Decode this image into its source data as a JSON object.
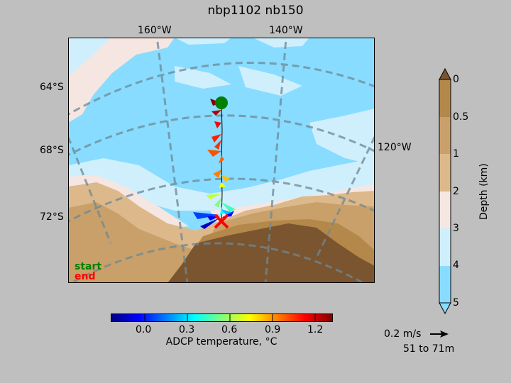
{
  "title": "nbp1102 nb150",
  "map": {
    "lon_labels": [
      "160°W",
      "140°W",
      "120°W"
    ],
    "lat_labels": [
      "64°S",
      "68°S",
      "72°S"
    ],
    "legend": {
      "start": "start",
      "end": "end"
    },
    "colors": {
      "ocean_deep": "#88dcff",
      "ocean_mid": "#cfeffd",
      "ocean_shallow": "#f5e6e1",
      "shelf": "#ddb88a",
      "land_low": "#c9a06a",
      "land": "#b3884a",
      "land_high": "#7a5530",
      "graticule": "#6e8893",
      "start_marker": "#008000",
      "end_marker": "#ff0000"
    }
  },
  "temperature_colorbar": {
    "label": "ADCP temperature, °C",
    "ticks": [
      "0.0",
      "0.3",
      "0.6",
      "0.9",
      "1.2"
    ],
    "range": [
      -0.25,
      1.3
    ],
    "colors": [
      "#00007f",
      "#0000ff",
      "#007fff",
      "#00ffff",
      "#7fff7f",
      "#ffff00",
      "#ff7f00",
      "#ff0000",
      "#7f0000"
    ]
  },
  "depth_colorbar": {
    "label": "Depth (km)",
    "ticks": [
      "0",
      "0.5",
      "1",
      "2",
      "3",
      "4",
      "5"
    ],
    "colors": [
      "#b3884a",
      "#c9a06a",
      "#ddb88a",
      "#f5e6e1",
      "#cfeffd",
      "#88dcff"
    ],
    "extend_top_color": "#7a5530",
    "extend_bottom_color": "#88dcff"
  },
  "scale_arrow": {
    "label": "0.2 m/s",
    "depth_range": "51 to 71m"
  }
}
